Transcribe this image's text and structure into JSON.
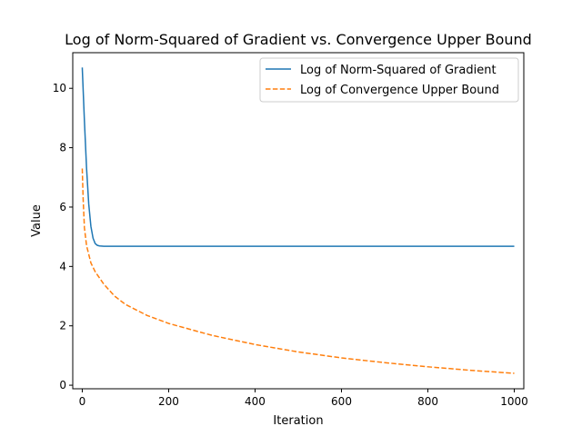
{
  "chart_data": {
    "type": "line",
    "title": "Log of Norm-Squared of Gradient vs. Convergence Upper Bound",
    "xlabel": "Iteration",
    "ylabel": "Value",
    "xlim": [
      -22,
      1022
    ],
    "ylim": [
      -0.12,
      11.2
    ],
    "xticks": [
      0,
      200,
      400,
      600,
      800,
      1000
    ],
    "yticks": [
      0,
      2,
      4,
      6,
      8,
      10
    ],
    "grid": false,
    "legend_position": "top-right",
    "series": [
      {
        "name": "Log of Norm-Squared of Gradient",
        "color": "#1f77b4",
        "style": "solid",
        "x": [
          0,
          5,
          10,
          15,
          20,
          25,
          30,
          35,
          40,
          50,
          60,
          80,
          100,
          200,
          300,
          400,
          500,
          600,
          700,
          800,
          900,
          1000
        ],
        "y": [
          10.7,
          8.9,
          7.3,
          6.1,
          5.35,
          4.95,
          4.77,
          4.71,
          4.69,
          4.68,
          4.68,
          4.68,
          4.68,
          4.68,
          4.68,
          4.68,
          4.68,
          4.68,
          4.68,
          4.68,
          4.68,
          4.68
        ]
      },
      {
        "name": "Log of Convergence Upper Bound",
        "color": "#ff7f0e",
        "style": "dashed",
        "x": [
          0,
          2,
          5,
          10,
          20,
          30,
          50,
          75,
          100,
          150,
          200,
          300,
          400,
          500,
          600,
          700,
          800,
          900,
          1000
        ],
        "y": [
          7.3,
          6.3,
          5.3,
          4.7,
          4.12,
          3.82,
          3.4,
          3.0,
          2.72,
          2.35,
          2.08,
          1.68,
          1.37,
          1.12,
          0.92,
          0.76,
          0.62,
          0.5,
          0.4
        ]
      }
    ]
  }
}
